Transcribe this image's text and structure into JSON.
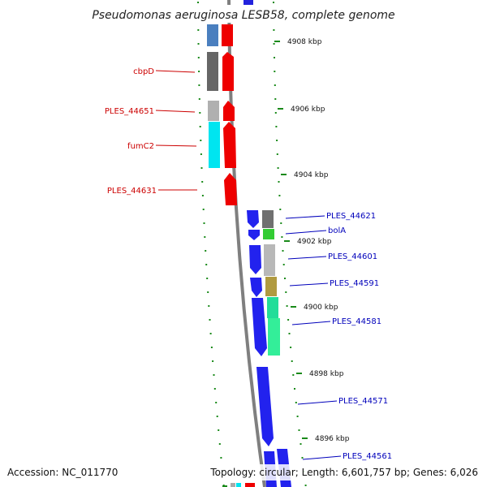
{
  "title": "Pseudomonas aeruginosa LESB58, complete genome",
  "footer": {
    "accession": "Accession: NC_011770",
    "topology": "Topology: circular; Length: 6,601,757 bp; Genes: 6,026"
  },
  "colors": {
    "background": "#ffffff",
    "reverse_strand_label": "#cc0000",
    "forward_strand_label": "#0000bb",
    "backbone": "#808080",
    "tick": "#1a8a1a"
  },
  "ticks": [
    {
      "label": "4908 kbp"
    },
    {
      "label": "4906 kbp"
    },
    {
      "label": "4904 kbp"
    },
    {
      "label": "4902 kbp"
    },
    {
      "label": "4900 kbp"
    },
    {
      "label": "4898 kbp"
    },
    {
      "label": "4896 kbp"
    }
  ],
  "reverse_labels": [
    {
      "text": "cbpD"
    },
    {
      "text": "PLES_44651"
    },
    {
      "text": "fumC2"
    },
    {
      "text": "PLES_44631"
    }
  ],
  "forward_labels": [
    {
      "text": "PLES_44621"
    },
    {
      "text": "bolA"
    },
    {
      "text": "PLES_44601"
    },
    {
      "text": "PLES_44591"
    },
    {
      "text": "PLES_44581"
    },
    {
      "text": "PLES_44571"
    },
    {
      "text": "PLES_44561"
    }
  ]
}
